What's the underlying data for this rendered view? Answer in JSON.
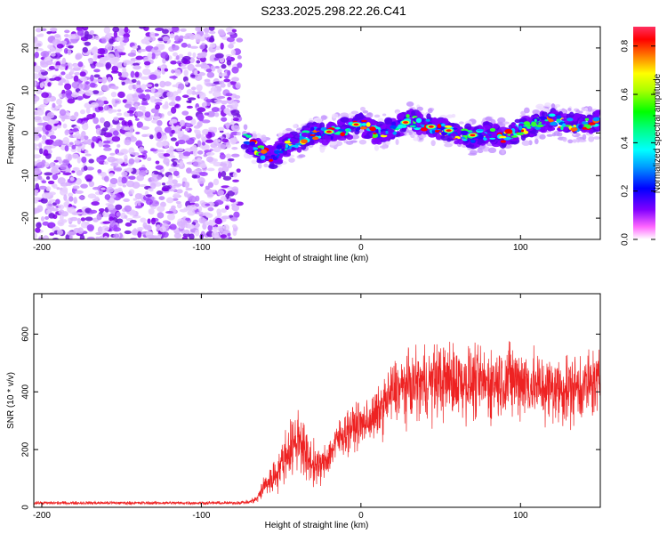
{
  "title": "S233.2025.298.22.26.C41",
  "chart_data": [
    {
      "type": "heatmap",
      "name": "spectrogram",
      "xlabel": "Height of straight line (km)",
      "ylabel": "Frequency (Hz)",
      "xlim": [
        -205,
        150
      ],
      "ylim": [
        -25,
        25
      ],
      "xticks": [
        -200,
        -100,
        0,
        100
      ],
      "yticks": [
        -20,
        -10,
        0,
        10,
        20
      ],
      "xtick_labels": [
        "-200",
        "-100",
        "0",
        "100"
      ],
      "ytick_labels": [
        "-20",
        "-10",
        "0",
        "10",
        "20"
      ],
      "colorbar": {
        "label": "Normalized spectral amplitude",
        "range": [
          0.0,
          0.88
        ],
        "ticks": [
          0.0,
          0.2,
          0.4,
          0.6,
          0.8
        ],
        "tick_labels": [
          "0.0",
          "0.2",
          "0.4",
          "0.6",
          "0.8"
        ],
        "colors": [
          "#ffffff",
          "#ff00ff",
          "#8000ff",
          "#0000ff",
          "#00aaff",
          "#00ffff",
          "#00ff80",
          "#00ff00",
          "#aaff00",
          "#ffff00",
          "#ff8000",
          "#ff0000",
          "#ff3060"
        ]
      },
      "noise_region": {
        "x_range": [
          -205,
          -76
        ],
        "freq_range": [
          -25,
          25
        ]
      },
      "signal_trace": {
        "x": [
          -73,
          -65,
          -55,
          -48,
          -40,
          -30,
          -20,
          -10,
          0,
          10,
          20,
          30,
          40,
          50,
          60,
          70,
          80,
          90,
          100,
          110,
          120,
          130,
          140,
          150
        ],
        "freq": [
          -1,
          -4,
          -6,
          -3,
          -2,
          0,
          0,
          1,
          2,
          0,
          1,
          3,
          2,
          1,
          0,
          -1,
          0,
          -1,
          1,
          2,
          3,
          2,
          2,
          3
        ]
      }
    },
    {
      "type": "line",
      "name": "snr",
      "xlabel": "Height of straight line (km)",
      "ylabel": "SNR (10 * v/v)",
      "xlim": [
        -205,
        150
      ],
      "ylim": [
        0,
        740
      ],
      "xticks": [
        -200,
        -100,
        0,
        100
      ],
      "yticks": [
        0,
        200,
        400,
        600
      ],
      "xtick_labels": [
        "-200",
        "-100",
        "0",
        "100"
      ],
      "ytick_labels": [
        "0",
        "200",
        "400",
        "600"
      ],
      "color": "#ee2222",
      "series": [
        {
          "name": "SNR",
          "x": [
            -205,
            -80,
            -70,
            -65,
            -60,
            -55,
            -50,
            -45,
            -40,
            -38,
            -35,
            -30,
            -25,
            -20,
            -15,
            -10,
            -5,
            0,
            5,
            10,
            15,
            20,
            30,
            40,
            50,
            60,
            70,
            80,
            90,
            100,
            110,
            120,
            130,
            140,
            150
          ],
          "mean": [
            15,
            15,
            18,
            30,
            80,
            100,
            150,
            200,
            230,
            250,
            180,
            150,
            140,
            180,
            230,
            260,
            280,
            285,
            300,
            320,
            360,
            400,
            420,
            430,
            440,
            440,
            430,
            430,
            440,
            440,
            420,
            410,
            410,
            420,
            430
          ],
          "spread": [
            6,
            6,
            8,
            15,
            50,
            60,
            80,
            100,
            120,
            130,
            100,
            80,
            60,
            70,
            70,
            80,
            80,
            80,
            80,
            90,
            100,
            120,
            120,
            130,
            140,
            140,
            130,
            130,
            140,
            140,
            130,
            130,
            130,
            130,
            120
          ]
        }
      ]
    }
  ]
}
